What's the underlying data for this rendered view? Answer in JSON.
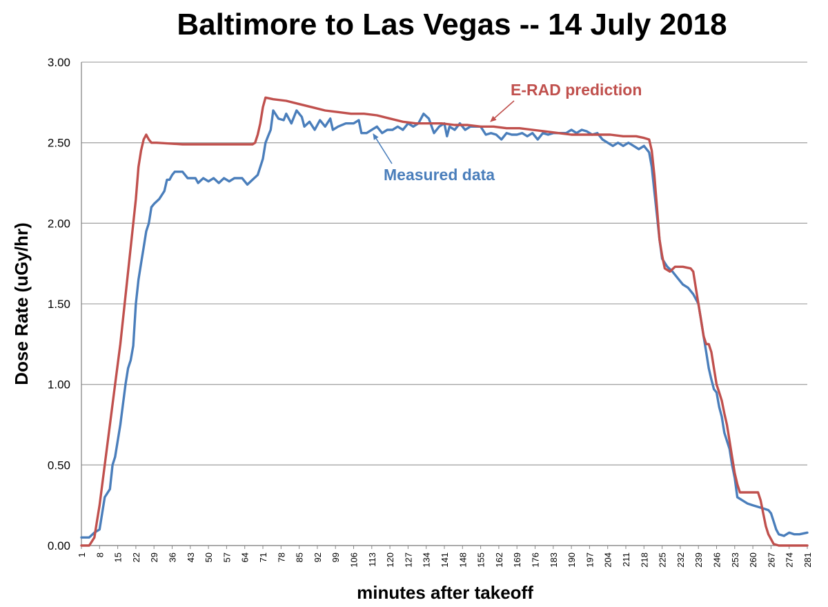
{
  "chart_data": {
    "type": "line",
    "title": "Baltimore to Las Vegas -- 14 July 2018",
    "xlabel": "minutes after takeoff",
    "ylabel": "Dose Rate (uGy/hr)",
    "xlim": [
      1,
      281
    ],
    "ylim": [
      0,
      3
    ],
    "grid": "horizontal",
    "y_ticks": [
      "0.00",
      "0.50",
      "1.00",
      "1.50",
      "2.00",
      "2.50",
      "3.00"
    ],
    "x_ticks": [
      "1",
      "8",
      "15",
      "22",
      "29",
      "36",
      "43",
      "50",
      "57",
      "64",
      "71",
      "78",
      "85",
      "92",
      "99",
      "106",
      "113",
      "120",
      "127",
      "134",
      "141",
      "148",
      "155",
      "162",
      "169",
      "176",
      "183",
      "190",
      "197",
      "204",
      "211",
      "218",
      "225",
      "232",
      "239",
      "246",
      "253",
      "260",
      "267",
      "274",
      "281"
    ],
    "series": [
      {
        "name": "Measured data",
        "color": "#4a7ebb",
        "points": [
          [
            1,
            0.05
          ],
          [
            4,
            0.05
          ],
          [
            6,
            0.08
          ],
          [
            8,
            0.1
          ],
          [
            10,
            0.3
          ],
          [
            12,
            0.35
          ],
          [
            13,
            0.5
          ],
          [
            14,
            0.55
          ],
          [
            16,
            0.75
          ],
          [
            18,
            1.0
          ],
          [
            19,
            1.1
          ],
          [
            20,
            1.15
          ],
          [
            21,
            1.24
          ],
          [
            22,
            1.5
          ],
          [
            23,
            1.65
          ],
          [
            24,
            1.75
          ],
          [
            25,
            1.85
          ],
          [
            26,
            1.95
          ],
          [
            27,
            2.0
          ],
          [
            28,
            2.1
          ],
          [
            29,
            2.12
          ],
          [
            31,
            2.15
          ],
          [
            33,
            2.2
          ],
          [
            34,
            2.27
          ],
          [
            35,
            2.27
          ],
          [
            36,
            2.3
          ],
          [
            37,
            2.32
          ],
          [
            40,
            2.32
          ],
          [
            42,
            2.28
          ],
          [
            45,
            2.28
          ],
          [
            46,
            2.25
          ],
          [
            48,
            2.28
          ],
          [
            50,
            2.26
          ],
          [
            52,
            2.28
          ],
          [
            54,
            2.25
          ],
          [
            56,
            2.28
          ],
          [
            58,
            2.26
          ],
          [
            60,
            2.28
          ],
          [
            63,
            2.28
          ],
          [
            65,
            2.24
          ],
          [
            67,
            2.27
          ],
          [
            69,
            2.3
          ],
          [
            71,
            2.4
          ],
          [
            72,
            2.5
          ],
          [
            73,
            2.54
          ],
          [
            74,
            2.58
          ],
          [
            75,
            2.7
          ],
          [
            77,
            2.65
          ],
          [
            79,
            2.64
          ],
          [
            80,
            2.68
          ],
          [
            82,
            2.62
          ],
          [
            84,
            2.7
          ],
          [
            86,
            2.66
          ],
          [
            87,
            2.6
          ],
          [
            89,
            2.63
          ],
          [
            91,
            2.58
          ],
          [
            93,
            2.64
          ],
          [
            95,
            2.6
          ],
          [
            97,
            2.65
          ],
          [
            98,
            2.58
          ],
          [
            100,
            2.6
          ],
          [
            103,
            2.62
          ],
          [
            106,
            2.62
          ],
          [
            108,
            2.64
          ],
          [
            109,
            2.56
          ],
          [
            111,
            2.56
          ],
          [
            113,
            2.58
          ],
          [
            115,
            2.6
          ],
          [
            117,
            2.56
          ],
          [
            119,
            2.58
          ],
          [
            121,
            2.58
          ],
          [
            123,
            2.6
          ],
          [
            125,
            2.58
          ],
          [
            127,
            2.62
          ],
          [
            129,
            2.6
          ],
          [
            131,
            2.62
          ],
          [
            133,
            2.68
          ],
          [
            135,
            2.65
          ],
          [
            137,
            2.56
          ],
          [
            139,
            2.6
          ],
          [
            141,
            2.62
          ],
          [
            142,
            2.54
          ],
          [
            143,
            2.6
          ],
          [
            145,
            2.58
          ],
          [
            147,
            2.62
          ],
          [
            149,
            2.58
          ],
          [
            151,
            2.6
          ],
          [
            153,
            2.6
          ],
          [
            155,
            2.6
          ],
          [
            157,
            2.55
          ],
          [
            159,
            2.56
          ],
          [
            161,
            2.55
          ],
          [
            163,
            2.52
          ],
          [
            165,
            2.56
          ],
          [
            167,
            2.55
          ],
          [
            169,
            2.55
          ],
          [
            171,
            2.56
          ],
          [
            173,
            2.54
          ],
          [
            175,
            2.56
          ],
          [
            177,
            2.52
          ],
          [
            179,
            2.56
          ],
          [
            181,
            2.55
          ],
          [
            183,
            2.56
          ],
          [
            186,
            2.56
          ],
          [
            188,
            2.56
          ],
          [
            190,
            2.58
          ],
          [
            192,
            2.56
          ],
          [
            194,
            2.58
          ],
          [
            196,
            2.57
          ],
          [
            198,
            2.55
          ],
          [
            200,
            2.56
          ],
          [
            202,
            2.52
          ],
          [
            204,
            2.5
          ],
          [
            206,
            2.48
          ],
          [
            208,
            2.5
          ],
          [
            210,
            2.48
          ],
          [
            212,
            2.5
          ],
          [
            214,
            2.48
          ],
          [
            216,
            2.46
          ],
          [
            218,
            2.48
          ],
          [
            220,
            2.44
          ],
          [
            221,
            2.35
          ],
          [
            222,
            2.2
          ],
          [
            223,
            2.05
          ],
          [
            224,
            1.9
          ],
          [
            225,
            1.78
          ],
          [
            227,
            1.73
          ],
          [
            229,
            1.7
          ],
          [
            231,
            1.66
          ],
          [
            233,
            1.62
          ],
          [
            235,
            1.6
          ],
          [
            237,
            1.56
          ],
          [
            239,
            1.5
          ],
          [
            240,
            1.4
          ],
          [
            241,
            1.3
          ],
          [
            242,
            1.2
          ],
          [
            243,
            1.1
          ],
          [
            244,
            1.03
          ],
          [
            245,
            0.97
          ],
          [
            246,
            0.95
          ],
          [
            247,
            0.86
          ],
          [
            248,
            0.8
          ],
          [
            249,
            0.7
          ],
          [
            250,
            0.65
          ],
          [
            251,
            0.6
          ],
          [
            252,
            0.5
          ],
          [
            253,
            0.42
          ],
          [
            254,
            0.3
          ],
          [
            256,
            0.28
          ],
          [
            258,
            0.26
          ],
          [
            260,
            0.25
          ],
          [
            262,
            0.24
          ],
          [
            264,
            0.23
          ],
          [
            266,
            0.22
          ],
          [
            267,
            0.2
          ],
          [
            268,
            0.15
          ],
          [
            269,
            0.1
          ],
          [
            270,
            0.07
          ],
          [
            272,
            0.06
          ],
          [
            274,
            0.08
          ],
          [
            276,
            0.07
          ],
          [
            278,
            0.07
          ],
          [
            281,
            0.08
          ]
        ]
      },
      {
        "name": "E-RAD prediction",
        "color": "#c0504d",
        "points": [
          [
            1,
            0.0
          ],
          [
            4,
            0.0
          ],
          [
            6,
            0.05
          ],
          [
            7,
            0.15
          ],
          [
            8,
            0.25
          ],
          [
            10,
            0.5
          ],
          [
            12,
            0.75
          ],
          [
            14,
            1.0
          ],
          [
            16,
            1.25
          ],
          [
            18,
            1.55
          ],
          [
            20,
            1.85
          ],
          [
            22,
            2.15
          ],
          [
            23,
            2.35
          ],
          [
            24,
            2.45
          ],
          [
            25,
            2.52
          ],
          [
            26,
            2.55
          ],
          [
            27,
            2.52
          ],
          [
            28,
            2.5
          ],
          [
            30,
            2.5
          ],
          [
            40,
            2.49
          ],
          [
            50,
            2.49
          ],
          [
            60,
            2.49
          ],
          [
            67,
            2.49
          ],
          [
            68,
            2.5
          ],
          [
            69,
            2.55
          ],
          [
            70,
            2.62
          ],
          [
            71,
            2.72
          ],
          [
            72,
            2.78
          ],
          [
            75,
            2.77
          ],
          [
            80,
            2.76
          ],
          [
            85,
            2.74
          ],
          [
            90,
            2.72
          ],
          [
            95,
            2.7
          ],
          [
            100,
            2.69
          ],
          [
            105,
            2.68
          ],
          [
            110,
            2.68
          ],
          [
            115,
            2.67
          ],
          [
            120,
            2.65
          ],
          [
            125,
            2.63
          ],
          [
            130,
            2.62
          ],
          [
            135,
            2.62
          ],
          [
            140,
            2.62
          ],
          [
            145,
            2.61
          ],
          [
            150,
            2.61
          ],
          [
            155,
            2.6
          ],
          [
            160,
            2.6
          ],
          [
            165,
            2.59
          ],
          [
            170,
            2.59
          ],
          [
            175,
            2.58
          ],
          [
            180,
            2.57
          ],
          [
            185,
            2.56
          ],
          [
            190,
            2.55
          ],
          [
            195,
            2.55
          ],
          [
            200,
            2.55
          ],
          [
            205,
            2.55
          ],
          [
            210,
            2.54
          ],
          [
            215,
            2.54
          ],
          [
            218,
            2.53
          ],
          [
            220,
            2.52
          ],
          [
            221,
            2.45
          ],
          [
            222,
            2.3
          ],
          [
            223,
            2.1
          ],
          [
            224,
            1.9
          ],
          [
            225,
            1.8
          ],
          [
            226,
            1.72
          ],
          [
            228,
            1.7
          ],
          [
            230,
            1.73
          ],
          [
            233,
            1.73
          ],
          [
            236,
            1.72
          ],
          [
            237,
            1.7
          ],
          [
            238,
            1.6
          ],
          [
            239,
            1.5
          ],
          [
            240,
            1.4
          ],
          [
            241,
            1.3
          ],
          [
            242,
            1.25
          ],
          [
            243,
            1.25
          ],
          [
            244,
            1.2
          ],
          [
            245,
            1.1
          ],
          [
            246,
            1.0
          ],
          [
            247,
            0.95
          ],
          [
            248,
            0.9
          ],
          [
            249,
            0.82
          ],
          [
            250,
            0.75
          ],
          [
            251,
            0.65
          ],
          [
            252,
            0.55
          ],
          [
            253,
            0.45
          ],
          [
            254,
            0.38
          ],
          [
            255,
            0.33
          ],
          [
            257,
            0.33
          ],
          [
            260,
            0.33
          ],
          [
            262,
            0.33
          ],
          [
            263,
            0.28
          ],
          [
            264,
            0.2
          ],
          [
            265,
            0.12
          ],
          [
            266,
            0.07
          ],
          [
            267,
            0.04
          ],
          [
            268,
            0.01
          ],
          [
            270,
            0.0
          ],
          [
            281,
            0.0
          ]
        ]
      }
    ],
    "annotations": [
      {
        "text": "E-RAD prediction",
        "color": "#c0504d",
        "series": "E-RAD prediction"
      },
      {
        "text": "Measured data",
        "color": "#4a7ebb",
        "series": "Measured data"
      }
    ]
  }
}
